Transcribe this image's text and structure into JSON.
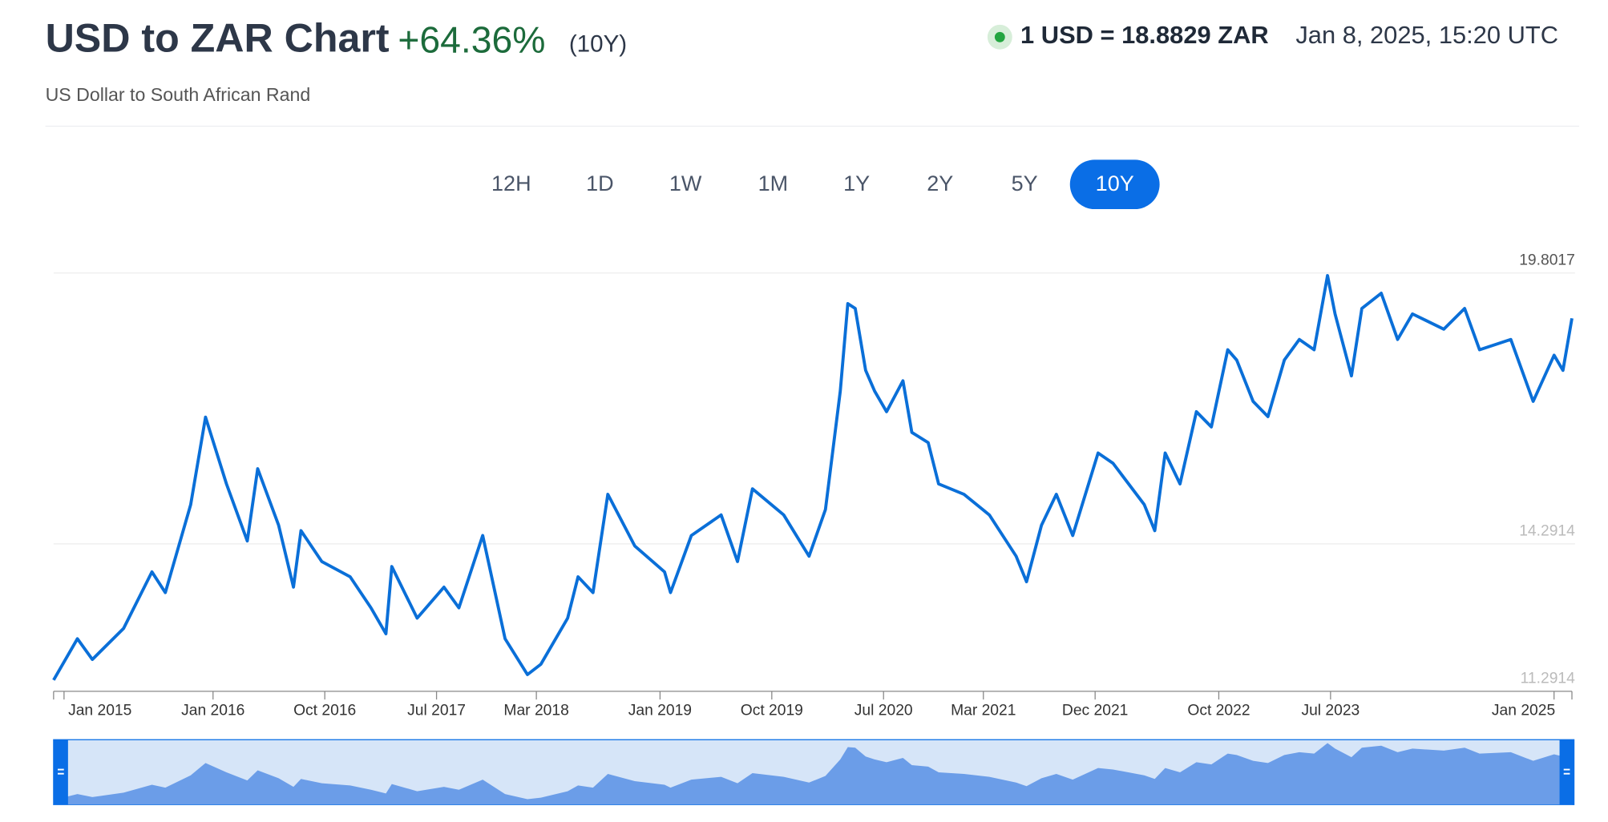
{
  "header": {
    "title": "USD to ZAR Chart",
    "change": "+64.36%",
    "period": "(10Y)",
    "subtitle": "US Dollar to South African Rand",
    "rate": "1 USD = 18.8829 ZAR",
    "timestamp": "Jan 8, 2025, 15:20 UTC"
  },
  "ranges": [
    "12H",
    "1D",
    "1W",
    "1M",
    "1Y",
    "2Y",
    "5Y",
    "10Y"
  ],
  "active_range": 7,
  "chart_data": {
    "type": "line",
    "x": [
      2014.93,
      2015.09,
      2015.19,
      2015.4,
      2015.59,
      2015.68,
      2015.85,
      2015.95,
      2016.09,
      2016.23,
      2016.3,
      2016.44,
      2016.54,
      2016.59,
      2016.73,
      2016.92,
      2017.06,
      2017.16,
      2017.2,
      2017.37,
      2017.55,
      2017.65,
      2017.81,
      2017.96,
      2018.11,
      2018.2,
      2018.38,
      2018.45,
      2018.55,
      2018.65,
      2018.83,
      2019.03,
      2019.07,
      2019.21,
      2019.41,
      2019.52,
      2019.62,
      2019.83,
      2020.0,
      2020.11,
      2020.21,
      2020.26,
      2020.31,
      2020.38,
      2020.44,
      2020.52,
      2020.63,
      2020.69,
      2020.8,
      2020.87,
      2021.04,
      2021.21,
      2021.39,
      2021.46,
      2021.56,
      2021.66,
      2021.77,
      2021.94,
      2022.04,
      2022.25,
      2022.32,
      2022.39,
      2022.49,
      2022.6,
      2022.7,
      2022.81,
      2022.87,
      2022.98,
      2023.08,
      2023.19,
      2023.29,
      2023.39,
      2023.48,
      2023.53,
      2023.64,
      2023.71,
      2023.84,
      2023.95,
      2024.05,
      2024.26,
      2024.4,
      2024.5,
      2024.71,
      2024.86,
      2025.0,
      2025.06,
      2025.12
    ],
    "series": [
      {
        "color": "#0a6fd8",
        "values": [
          11.52,
          12.36,
          11.94,
          12.57,
          13.72,
          13.3,
          15.09,
          16.87,
          15.51,
          14.35,
          15.82,
          14.67,
          13.41,
          14.56,
          13.93,
          13.62,
          12.99,
          12.46,
          13.83,
          12.78,
          13.41,
          12.99,
          14.46,
          12.36,
          11.63,
          11.84,
          12.78,
          13.62,
          13.3,
          15.3,
          14.25,
          13.72,
          13.3,
          14.46,
          14.88,
          13.93,
          15.41,
          14.88,
          14.04,
          14.99,
          17.4,
          19.18,
          19.08,
          17.82,
          17.4,
          16.98,
          17.61,
          16.56,
          16.35,
          15.51,
          15.3,
          14.88,
          14.04,
          13.52,
          14.67,
          15.3,
          14.46,
          16.14,
          15.93,
          15.09,
          14.56,
          16.14,
          15.51,
          16.98,
          16.67,
          18.24,
          18.03,
          17.19,
          16.88,
          18.03,
          18.45,
          18.24,
          19.75,
          18.97,
          17.71,
          19.08,
          19.39,
          18.45,
          18.97,
          18.66,
          19.08,
          18.24,
          18.45,
          17.19,
          18.13,
          17.82,
          18.88
        ]
      }
    ],
    "xlim": [
      2014.93,
      2025.12
    ],
    "ylim": [
      11.2914,
      19.8017
    ],
    "yticks": [
      11.2914,
      14.2914,
      19.8017
    ],
    "xticks": [
      {
        "value": 2015,
        "label": "Jan 2015"
      },
      {
        "value": 2016,
        "label": "Jan 2016"
      },
      {
        "value": 2016.75,
        "label": "Oct 2016"
      },
      {
        "value": 2017.5,
        "label": "Jul 2017"
      },
      {
        "value": 2018.17,
        "label": "Mar 2018"
      },
      {
        "value": 2019,
        "label": "Jan 2019"
      },
      {
        "value": 2019.75,
        "label": "Oct 2019"
      },
      {
        "value": 2020.5,
        "label": "Jul 2020"
      },
      {
        "value": 2021.17,
        "label": "Mar 2021"
      },
      {
        "value": 2021.92,
        "label": "Dec 2021"
      },
      {
        "value": 2022.75,
        "label": "Oct 2022"
      },
      {
        "value": 2023.5,
        "label": "Jul 2023"
      },
      {
        "value": 2025,
        "label": "Jan 2025"
      }
    ],
    "grid": true
  }
}
